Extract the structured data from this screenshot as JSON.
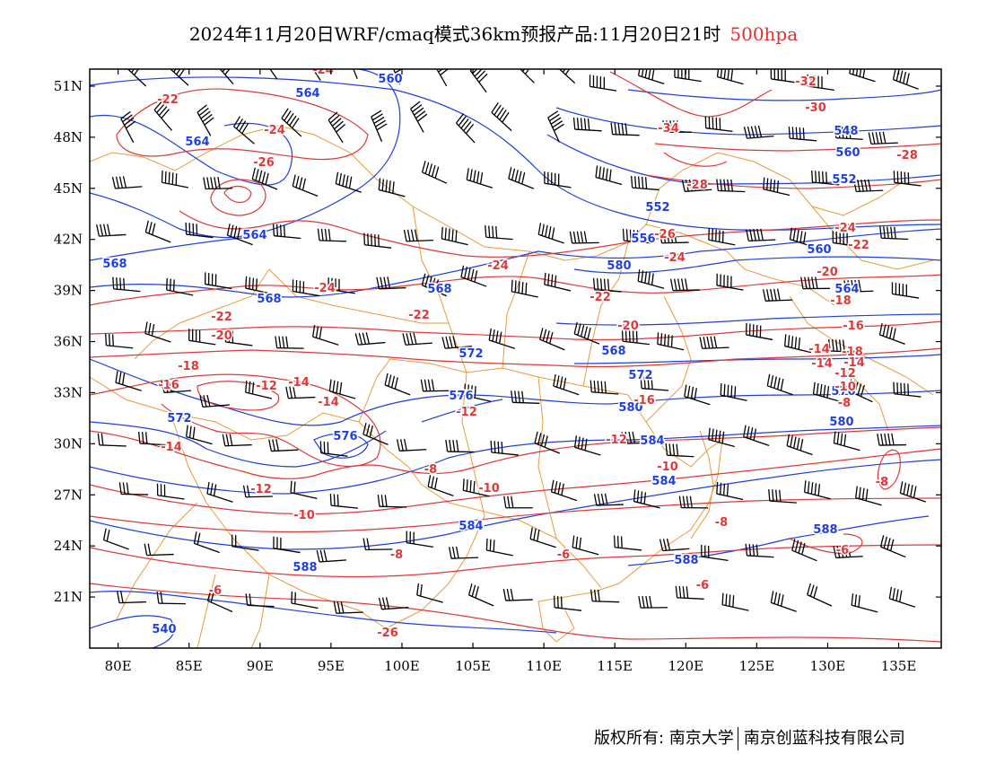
{
  "title": {
    "main": "2024年11月20日WRF/cmaq模式36km预报产品:11月20日21时",
    "level": "500hpa"
  },
  "axes": {
    "lat_labels": [
      "51N",
      "48N",
      "45N",
      "42N",
      "39N",
      "36N",
      "33N",
      "30N",
      "27N",
      "24N",
      "21N"
    ],
    "lat_values": [
      51,
      48,
      45,
      42,
      39,
      36,
      33,
      30,
      27,
      24,
      21
    ],
    "lon_labels": [
      "80E",
      "85E",
      "90E",
      "95E",
      "100E",
      "105E",
      "110E",
      "115E",
      "120E",
      "125E",
      "130E",
      "135E"
    ],
    "lon_values": [
      80,
      85,
      90,
      95,
      100,
      105,
      110,
      115,
      120,
      125,
      130,
      135
    ],
    "lon_range": [
      78,
      138
    ],
    "lat_range": [
      18,
      52
    ]
  },
  "colors": {
    "height_contour": "#1f3fe0",
    "temperature_contour": "#e03838",
    "boundary": "#e89a3a",
    "wind_barb": "#000000"
  },
  "labels": {
    "height": [
      "560",
      "564",
      "564",
      "564",
      "568",
      "568",
      "568",
      "568",
      "572",
      "572",
      "576",
      "576",
      "580",
      "580",
      "584",
      "584",
      "584",
      "588",
      "588",
      "588",
      "540",
      "548",
      "552",
      "552",
      "556",
      "560",
      "560",
      "564",
      "572",
      "576",
      "580"
    ],
    "temperature": [
      "-24",
      "-22",
      "-24",
      "-26",
      "-24",
      "-22",
      "-20",
      "-18",
      "-16",
      "-12",
      "-14",
      "-14",
      "-14",
      "-12",
      "-10",
      "-8",
      "-6",
      "-8",
      "-6",
      "-32",
      "-34",
      "-30",
      "-28",
      "-28",
      "-26",
      "-24",
      "-24",
      "-22",
      "-22",
      "-20",
      "-18",
      "-16",
      "-14",
      "-14",
      "-12",
      "-12",
      "-10",
      "-10",
      "-8",
      "-6",
      "-26",
      "-24",
      "-22",
      "-20",
      "-18",
      "-16",
      "-14",
      "-12",
      "-10",
      "-8",
      "-6",
      "-8"
    ]
  },
  "credit": {
    "left": "版权所有: 南京大学",
    "right": "南京创蓝科技有限公司"
  }
}
